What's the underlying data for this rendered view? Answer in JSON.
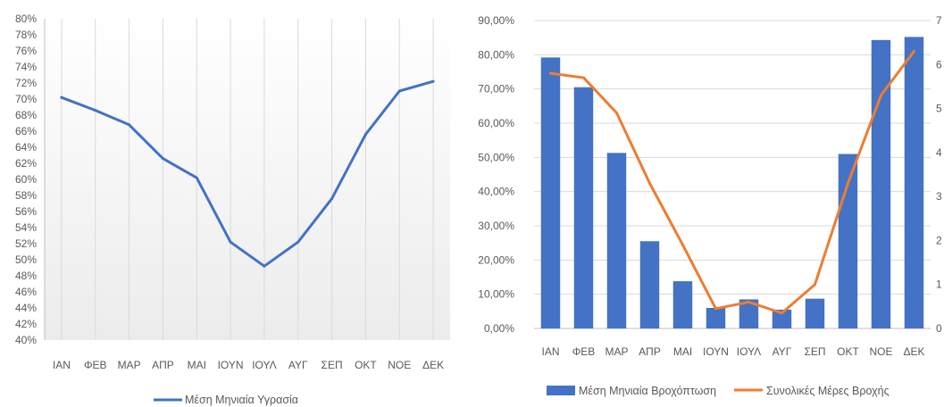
{
  "chart_data": [
    {
      "type": "line",
      "categories": [
        "ΙΑΝ",
        "ΦΕΒ",
        "ΜΑΡ",
        "ΑΠΡ",
        "ΜΑΙ",
        "ΙΟΥΝ",
        "ΙΟΥΛ",
        "ΑΥΓ",
        "ΣΕΠ",
        "ΟΚΤ",
        "ΝΟΕ",
        "ΔΕΚ"
      ],
      "series": [
        {
          "name": "Μέση Μηνιαία Υγρασία",
          "values": [
            70.2,
            68.6,
            66.8,
            62.6,
            60.2,
            52.2,
            49.2,
            52.2,
            57.6,
            65.6,
            71.0,
            72.2
          ],
          "color": "#4472C4"
        }
      ],
      "y_ticks": [
        "40%",
        "42%",
        "44%",
        "46%",
        "48%",
        "50%",
        "52%",
        "54%",
        "56%",
        "58%",
        "60%",
        "62%",
        "64%",
        "66%",
        "68%",
        "70%",
        "72%",
        "74%",
        "76%",
        "78%",
        "80%"
      ],
      "ylim": [
        40,
        80
      ],
      "grid": "vertical",
      "legend": "bottom"
    },
    {
      "type": "bar",
      "categories": [
        "ΙΑΝ",
        "ΦΕΒ",
        "ΜΑΡ",
        "ΑΠΡ",
        "ΜΑΙ",
        "ΙΟΥΝ",
        "ΙΟΥΛ",
        "ΑΥΓ",
        "ΣΕΠ",
        "ΟΚΤ",
        "ΝΟΕ",
        "ΔΕΚ"
      ],
      "series": [
        {
          "name": "Μέση Μηνιαία Βροχόπτωση",
          "type": "bar",
          "axis": "left",
          "values": [
            79.2,
            70.5,
            51.3,
            25.5,
            13.8,
            6.0,
            8.5,
            5.5,
            8.7,
            51.0,
            84.3,
            85.2
          ],
          "color": "#4472C4"
        },
        {
          "name": "Συνολικές Μέρες Βροχής",
          "type": "line",
          "axis": "right",
          "values": [
            5.8,
            5.7,
            4.9,
            3.3,
            1.9,
            0.45,
            0.6,
            0.35,
            1.0,
            3.3,
            5.3,
            6.3
          ],
          "color": "#ED7D31"
        }
      ],
      "y_left_ticks": [
        "0,00%",
        "10,00%",
        "20,00%",
        "30,00%",
        "40,00%",
        "50,00%",
        "60,00%",
        "70,00%",
        "80,00%",
        "90,00%"
      ],
      "y_right_ticks": [
        "0",
        "1",
        "2",
        "3",
        "4",
        "5",
        "6",
        "7"
      ],
      "ylim_left": [
        0,
        90
      ],
      "ylim_right": [
        0,
        7
      ],
      "grid": "horizontal",
      "legend": "bottom"
    }
  ]
}
